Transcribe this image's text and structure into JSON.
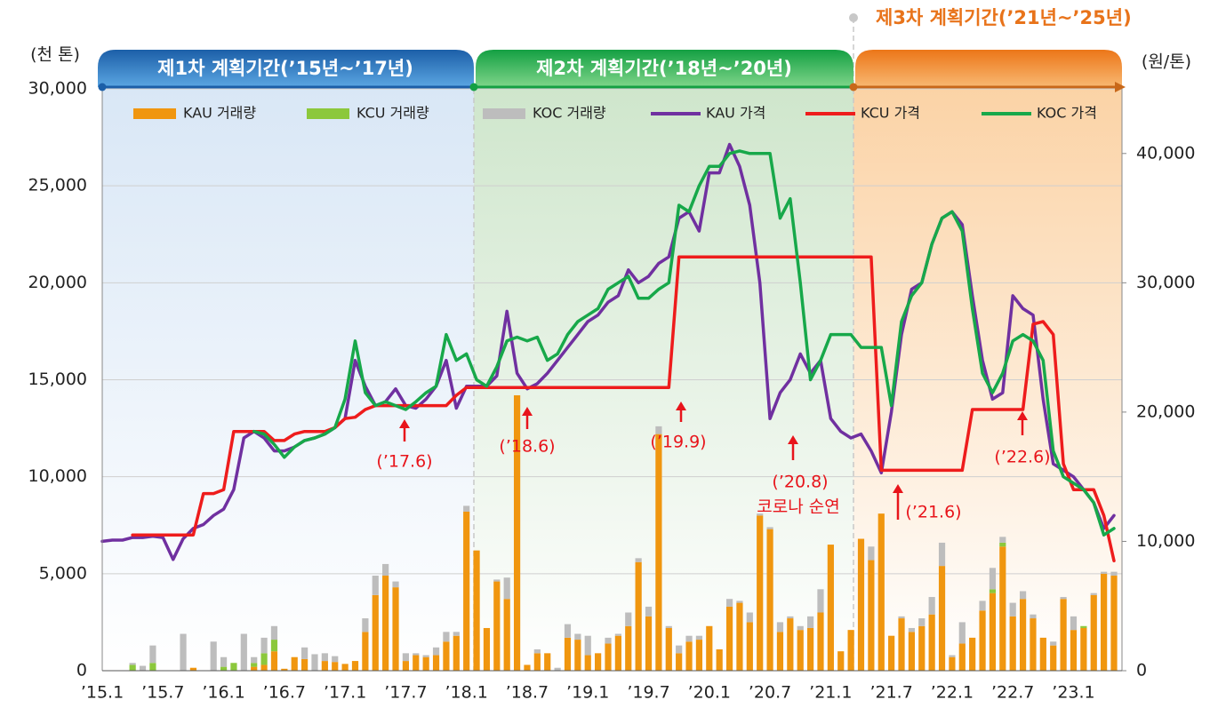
{
  "chart_data": {
    "type": "combo",
    "y_label": "(천 톤)",
    "y2_label": "(원/톤)",
    "periods": [
      "제1차 계획기간(’15년~’17년)",
      "제2차 계획기간(’18년~’20년)",
      "제3차 계획기간(’21년~’25년)"
    ],
    "annotations": [
      "(’17.6)",
      "(’18.6)",
      "(’19.9)",
      "(’20.8)",
      "코로나 순연",
      "(’21.6)",
      "(’22.6)"
    ],
    "categories": [
      "’15.1",
      null,
      null,
      null,
      null,
      null,
      "’15.7",
      null,
      null,
      null,
      null,
      null,
      "’16.1",
      null,
      null,
      null,
      null,
      null,
      "’16.7",
      null,
      null,
      null,
      null,
      null,
      "’17.1",
      null,
      null,
      null,
      null,
      null,
      "’17.7",
      null,
      null,
      null,
      null,
      null,
      "’18.1",
      null,
      null,
      null,
      null,
      null,
      "’18.7",
      null,
      null,
      null,
      null,
      null,
      "’19.1",
      null,
      null,
      null,
      null,
      null,
      "’19.7",
      null,
      null,
      null,
      null,
      null,
      "’20.1",
      null,
      null,
      null,
      null,
      null,
      "’20.7",
      null,
      null,
      null,
      null,
      null,
      "’21.1",
      null,
      null,
      null,
      null,
      null,
      "’21.7",
      null,
      null,
      null,
      null,
      null,
      "’22.1",
      null,
      null,
      null,
      null,
      null,
      "’22.7",
      null,
      null,
      null,
      null,
      null,
      "’23.1",
      null,
      null,
      null,
      null
    ],
    "series": [
      {
        "name": "KAU 거래량",
        "type": "bar",
        "color": "#f0960f",
        "values": [
          0,
          0,
          0,
          0,
          0,
          0,
          0,
          0,
          0,
          150,
          0,
          0,
          0,
          0,
          0,
          200,
          300,
          1000,
          100,
          700,
          600,
          0,
          500,
          450,
          350,
          500,
          2000,
          3900,
          4900,
          4300,
          500,
          800,
          700,
          800,
          1500,
          1800,
          8200,
          6200,
          2200,
          4600,
          3700,
          14200,
          300,
          900,
          900,
          0,
          1700,
          1600,
          800,
          900,
          1400,
          1800,
          2300,
          5600,
          2800,
          12200,
          2200,
          900,
          1500,
          1600,
          2300,
          1100,
          3300,
          3500,
          2500,
          8000,
          7300,
          2000,
          2700,
          2100,
          2200,
          3000,
          6500,
          1000,
          2100,
          6800,
          5700,
          8100,
          1800,
          2700,
          2000,
          2300,
          2900,
          5400,
          700,
          1400,
          1700,
          3100,
          4000,
          6400,
          2800,
          3700,
          2700,
          1700,
          1300,
          3700,
          2100,
          2200,
          3900,
          5000,
          4900
        ]
      },
      {
        "name": "KCU 거래량",
        "type": "bar",
        "color": "#8cc83c",
        "values": [
          0,
          0,
          0,
          300,
          0,
          400,
          0,
          0,
          0,
          0,
          0,
          0,
          200,
          400,
          0,
          200,
          600,
          600,
          0,
          0,
          0,
          0,
          0,
          0,
          0,
          0,
          0,
          0,
          0,
          0,
          0,
          0,
          0,
          0,
          0,
          0,
          0,
          0,
          0,
          0,
          0,
          0,
          0,
          0,
          0,
          0,
          0,
          0,
          0,
          0,
          0,
          0,
          0,
          0,
          0,
          0,
          0,
          0,
          0,
          0,
          0,
          0,
          0,
          0,
          0,
          0,
          0,
          0,
          0,
          0,
          0,
          0,
          0,
          0,
          0,
          0,
          0,
          0,
          0,
          0,
          0,
          0,
          0,
          0,
          0,
          0,
          0,
          0,
          200,
          200,
          0,
          0,
          0,
          0,
          0,
          0,
          0,
          100,
          0,
          0,
          0
        ]
      },
      {
        "name": "KOC 거래량",
        "type": "bar",
        "color": "#bdbdbd",
        "values": [
          0,
          0,
          0,
          100,
          250,
          900,
          0,
          0,
          1900,
          0,
          0,
          1500,
          500,
          0,
          1900,
          300,
          800,
          700,
          0,
          0,
          600,
          850,
          400,
          300,
          0,
          0,
          700,
          1000,
          600,
          300,
          400,
          100,
          100,
          400,
          500,
          200,
          300,
          0,
          0,
          100,
          1100,
          0,
          0,
          200,
          0,
          150,
          700,
          300,
          1000,
          0,
          300,
          100,
          700,
          200,
          500,
          400,
          100,
          400,
          300,
          200,
          0,
          0,
          400,
          100,
          500,
          100,
          100,
          500,
          100,
          200,
          600,
          1200,
          0,
          0,
          0,
          0,
          700,
          0,
          0,
          100,
          200,
          400,
          900,
          1200,
          100,
          1100,
          0,
          500,
          1100,
          300,
          700,
          400,
          200,
          0,
          200,
          100,
          700,
          0,
          100,
          100,
          200
        ]
      },
      {
        "name": "KAU 가격",
        "type": "line",
        "axis": "y2",
        "color": "#7030a0",
        "values": [
          10000,
          10100,
          10100,
          10300,
          10300,
          10400,
          10300,
          8600,
          10200,
          11000,
          11300,
          12000,
          12500,
          14000,
          18000,
          18500,
          18000,
          17000,
          17000,
          17300,
          17800,
          18000,
          18300,
          18800,
          19500,
          24000,
          22000,
          20500,
          20800,
          21800,
          20500,
          20300,
          21000,
          22000,
          24000,
          20300,
          22000,
          22000,
          22000,
          22800,
          27800,
          23000,
          21800,
          22200,
          23000,
          24000,
          25000,
          26000,
          27000,
          27500,
          28500,
          29000,
          31000,
          30000,
          30500,
          31500,
          32000,
          35000,
          35500,
          34000,
          38500,
          38500,
          40700,
          39000,
          36000,
          30000,
          19500,
          21500,
          22500,
          24500,
          23000,
          24000,
          19500,
          18500,
          18000,
          18300,
          17000,
          15300,
          20000,
          26000,
          29500,
          30000,
          33000,
          35000,
          35500,
          34500,
          29000,
          24000,
          21000,
          21500,
          29000,
          28000,
          27500,
          21000,
          16000,
          15500,
          15000,
          14000,
          13000,
          11000,
          12000
        ]
      },
      {
        "name": "KCU 가격",
        "type": "line",
        "axis": "y2",
        "color": "#ee1c1c",
        "values": [
          null,
          null,
          null,
          10500,
          10500,
          10500,
          10500,
          10500,
          10500,
          10500,
          13700,
          13700,
          14000,
          18500,
          18500,
          18500,
          18500,
          17800,
          17800,
          18300,
          18500,
          18500,
          18500,
          18800,
          19500,
          19600,
          20200,
          20500,
          20500,
          20500,
          20500,
          20500,
          20500,
          20500,
          20500,
          21300,
          21900,
          21900,
          21900,
          21900,
          21900,
          21900,
          21900,
          21900,
          21900,
          21900,
          21900,
          21900,
          21900,
          21900,
          21900,
          21900,
          21900,
          21900,
          21900,
          21900,
          21900,
          32000,
          32000,
          32000,
          32000,
          32000,
          32000,
          32000,
          32000,
          32000,
          32000,
          32000,
          32000,
          32000,
          32000,
          32000,
          32000,
          32000,
          32000,
          32000,
          32000,
          15500,
          15500,
          15500,
          15500,
          15500,
          15500,
          15500,
          15500,
          15500,
          20200,
          20200,
          20200,
          20200,
          20200,
          20200,
          26800,
          27000,
          26000,
          16000,
          14000,
          14000,
          14000,
          12000,
          8500
        ]
      },
      {
        "name": "KOC 가격",
        "type": "line",
        "axis": "y2",
        "color": "#17a84a",
        "values": [
          null,
          null,
          null,
          null,
          null,
          null,
          null,
          null,
          null,
          null,
          null,
          null,
          null,
          null,
          null,
          18500,
          18300,
          17500,
          16500,
          17300,
          17800,
          18000,
          18300,
          18800,
          21000,
          25500,
          21500,
          20500,
          20800,
          20500,
          20200,
          20800,
          21500,
          22000,
          26000,
          24000,
          24500,
          22500,
          22000,
          23500,
          25500,
          25800,
          25500,
          25800,
          24000,
          24500,
          26000,
          27000,
          27500,
          28000,
          29500,
          30000,
          30500,
          28800,
          28800,
          29500,
          30000,
          36000,
          35500,
          37500,
          39000,
          39000,
          40000,
          40200,
          40000,
          40000,
          40000,
          35000,
          36500,
          30000,
          22500,
          24000,
          26000,
          26000,
          26000,
          25000,
          25000,
          25000,
          20500,
          27000,
          29000,
          30000,
          33000,
          35000,
          35500,
          34000,
          28000,
          23000,
          21500,
          23000,
          25500,
          26000,
          25500,
          24000,
          17000,
          15000,
          14500,
          14000,
          13000,
          10500,
          11000
        ]
      }
    ],
    "ylim": [
      0,
      30000
    ],
    "yticks": [
      0,
      {
        "value": 5000,
        "label": "5,000"
      },
      {
        "value": 10000,
        "label": "10,000"
      },
      {
        "value": 15000,
        "label": "15,000"
      },
      {
        "value": 20000,
        "label": "20,000"
      },
      {
        "value": 25000,
        "label": "25,000"
      },
      {
        "value": 30000,
        "label": "30,000"
      }
    ],
    "y2lim": [
      0,
      45000
    ],
    "y2ticks": [
      0,
      {
        "value": 10000,
        "label": "10,000"
      },
      {
        "value": 20000,
        "label": "20,000"
      },
      {
        "value": 30000,
        "label": "30,000"
      },
      {
        "value": 40000,
        "label": "40,000"
      }
    ],
    "grid": true,
    "legend": "top"
  }
}
